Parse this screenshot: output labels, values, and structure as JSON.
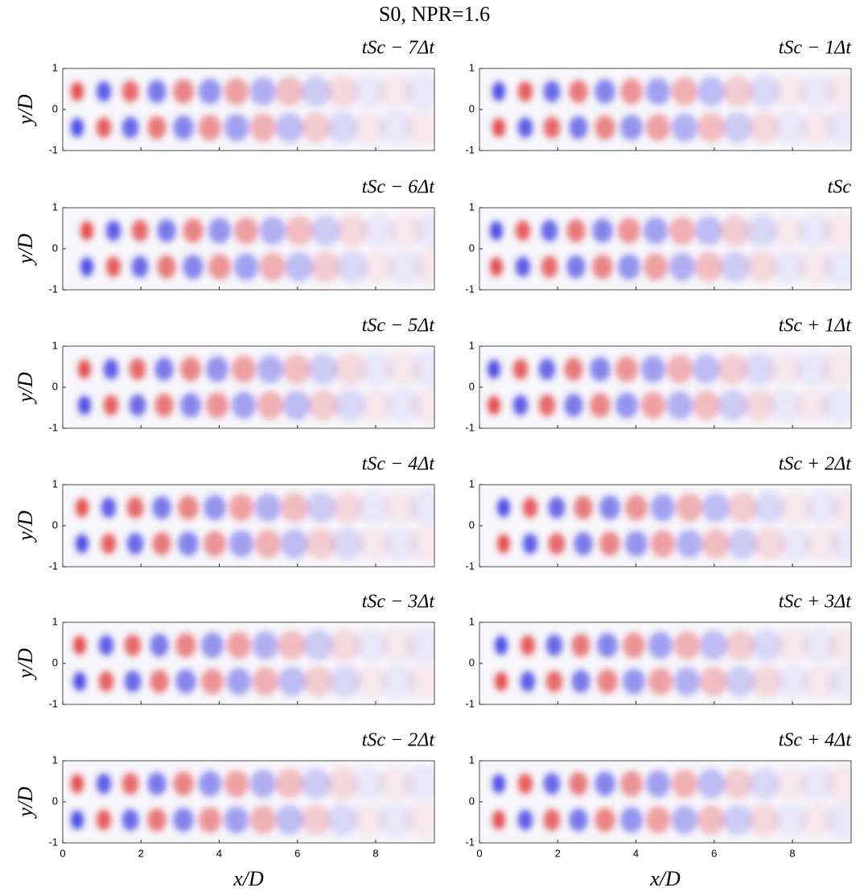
{
  "chart_data": {
    "type": "heatmap",
    "title": "S0, NPR=1.6",
    "xlabel": "x/D",
    "ylabel": "y/D",
    "xlim": [
      0,
      9.5
    ],
    "ylim": [
      -1,
      1
    ],
    "xticks": [
      0,
      2,
      4,
      6,
      8
    ],
    "yticks": [
      -1,
      0,
      1
    ],
    "panels": [
      {
        "title": "tSc − 7Δt"
      },
      {
        "title": "tSc − 1Δt"
      },
      {
        "title": "tSc − 6Δt"
      },
      {
        "title": "tSc"
      },
      {
        "title": "tSc − 5Δt"
      },
      {
        "title": "tSc + 1Δt"
      },
      {
        "title": "tSc − 4Δt"
      },
      {
        "title": "tSc + 2Δt"
      },
      {
        "title": "tSc − 3Δt"
      },
      {
        "title": "tSc + 3Δt"
      },
      {
        "title": "tSc − 2Δt"
      },
      {
        "title": "tSc + 4Δt"
      }
    ]
  }
}
